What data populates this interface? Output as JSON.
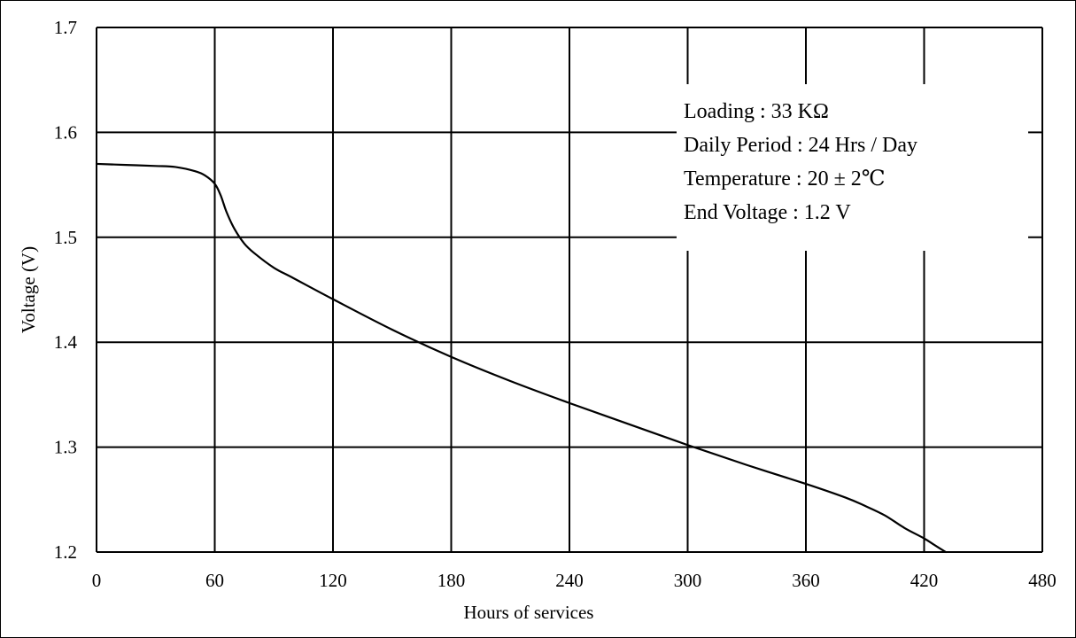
{
  "chart_data": {
    "type": "line",
    "title": "",
    "xlabel": "Hours of services",
    "ylabel": "Voltage (V)",
    "xlim": [
      0,
      480
    ],
    "ylim": [
      1.2,
      1.7
    ],
    "x_ticks": [
      0,
      60,
      120,
      180,
      240,
      300,
      360,
      420,
      480
    ],
    "x_tick_labels": [
      "0",
      "60",
      "120",
      "180",
      "240",
      "300",
      "360",
      "420",
      "480"
    ],
    "y_ticks": [
      1.2,
      1.3,
      1.4,
      1.5,
      1.6,
      1.7
    ],
    "y_tick_labels": [
      "1.2",
      "1.3",
      "1.4",
      "1.5",
      "1.6",
      "1.7"
    ],
    "grid": true,
    "annotations": [
      "Loading : 33 KΩ",
      "Daily Period : 24 Hrs / Day",
      "Temperature : 20 ± 2℃",
      "End Voltage :  1.2 V"
    ],
    "series": [
      {
        "color": "#000000",
        "x": [
          0,
          15,
          30,
          40,
          50,
          55,
          60,
          63,
          66,
          70,
          75,
          80,
          90,
          100,
          120,
          150,
          180,
          210,
          240,
          270,
          300,
          330,
          360,
          380,
          390,
          400,
          410,
          420,
          425,
          431
        ],
        "y": [
          1.57,
          1.569,
          1.568,
          1.567,
          1.563,
          1.559,
          1.551,
          1.54,
          1.524,
          1.508,
          1.494,
          1.485,
          1.471,
          1.461,
          1.441,
          1.412,
          1.386,
          1.363,
          1.342,
          1.322,
          1.302,
          1.283,
          1.265,
          1.252,
          1.244,
          1.235,
          1.223,
          1.213,
          1.207,
          1.2
        ]
      }
    ]
  },
  "colors": {
    "background": "#ffffff",
    "grid": "#000000",
    "line": "#000000"
  }
}
